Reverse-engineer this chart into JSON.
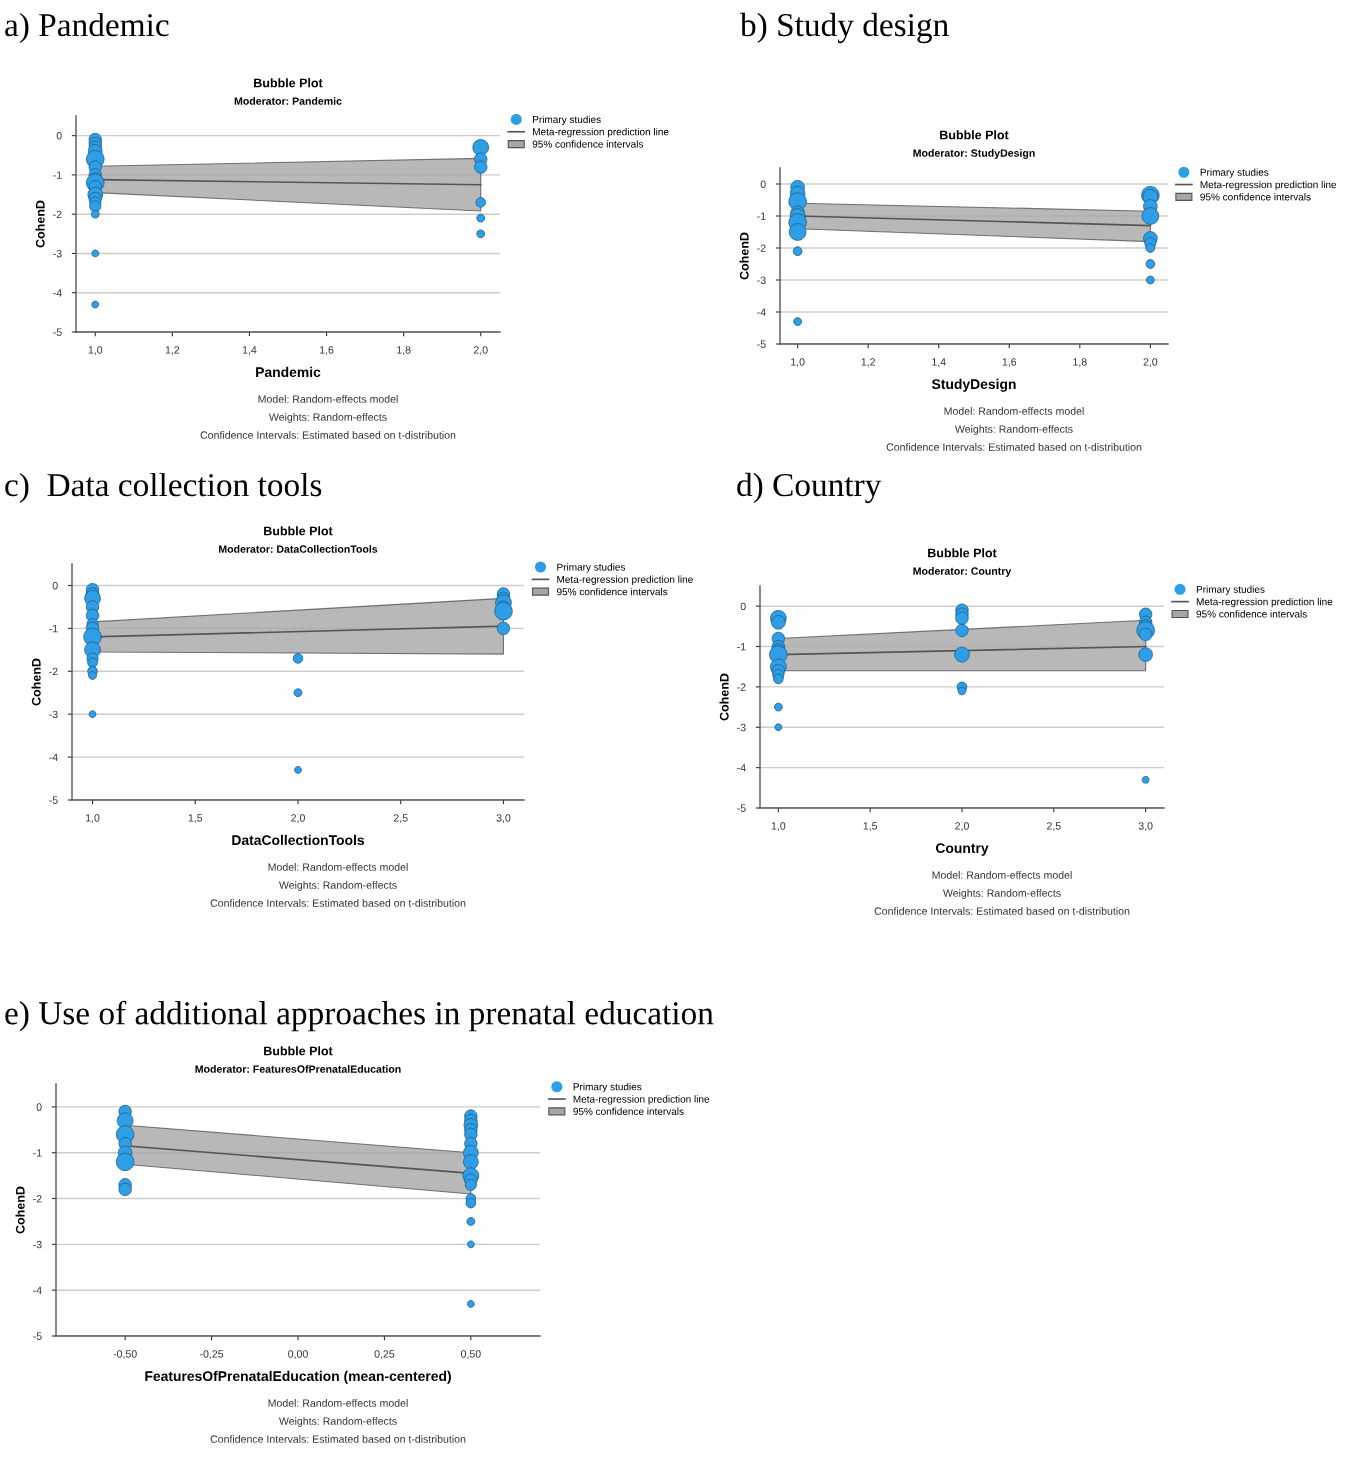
{
  "chart_data": [
    {
      "type": "bubble",
      "title": "a) Pandemic",
      "subtitle": "Bubble Plot",
      "xlabel": "Pandemic",
      "ylabel": "CohenD",
      "annotations": [
        "Moderator: Pandemic",
        "Model: Random-effects model",
        "Weights: Random-effects",
        "Confidence Intervals: Estimated based on t-distribution",
        "95% confidence intervals"
      ],
      "xlim": [
        0.95,
        2.05
      ],
      "ylim": [
        -5,
        0.5
      ],
      "xticks": [
        {
          "value": 1.0,
          "label": "1,0"
        },
        {
          "value": 1.2,
          "label": "1,2"
        },
        {
          "value": 1.4,
          "label": "1,4"
        },
        {
          "value": 1.6,
          "label": "1,6"
        },
        {
          "value": 1.8,
          "label": "1,8"
        },
        {
          "value": 2.0,
          "label": "2,0"
        }
      ],
      "yticks": [
        -5,
        -4,
        -3,
        -2,
        -1,
        0
      ],
      "grid": "y",
      "legend": "right",
      "series": [
        {
          "name": "Primary studies",
          "color": "#2e9fe6",
          "marker": "circle",
          "x": [
            1,
            1,
            1,
            1,
            1,
            1,
            1,
            1,
            1,
            1,
            1,
            1,
            1,
            1,
            1,
            1,
            1,
            2,
            2,
            2,
            2,
            2,
            2
          ],
          "values": [
            -0.1,
            -0.2,
            -0.3,
            -0.4,
            -0.6,
            -0.8,
            -1.0,
            -1.1,
            -1.2,
            -1.3,
            -1.5,
            -1.6,
            -1.7,
            -1.8,
            -2.0,
            -3.0,
            -4.3,
            -0.3,
            -0.6,
            -0.8,
            -1.7,
            -2.1,
            -2.5
          ],
          "sizes": [
            0.5,
            0.5,
            0.5,
            0.6,
            1.0,
            0.5,
            0.5,
            0.5,
            1.0,
            0.5,
            0.7,
            0.5,
            0.4,
            0.4,
            0.2,
            0.15,
            0.15,
            0.8,
            0.5,
            0.5,
            0.3,
            0.2,
            0.2
          ]
        },
        {
          "type": "line",
          "name": "Meta-regression prediction line",
          "color": "#555555",
          "x": [
            1,
            2
          ],
          "values": [
            -1.12,
            -1.25
          ],
          "lower": [
            -1.45,
            -1.92
          ],
          "upper": [
            -0.78,
            -0.58
          ]
        }
      ]
    },
    {
      "type": "bubble",
      "title": "b) Study design",
      "subtitle": "Bubble Plot",
      "xlabel": "StudyDesign",
      "ylabel": "CohenD",
      "annotations": [
        "Moderator: StudyDesign",
        "Model: Random-effects model",
        "Weights: Random-effects",
        "Confidence Intervals: Estimated based on t-distribution",
        "95% confidence intervals"
      ],
      "xlim": [
        0.95,
        2.05
      ],
      "ylim": [
        -5,
        0.5
      ],
      "xticks": [
        {
          "value": 1.0,
          "label": "1,0"
        },
        {
          "value": 1.2,
          "label": "1,2"
        },
        {
          "value": 1.4,
          "label": "1,4"
        },
        {
          "value": 1.6,
          "label": "1,6"
        },
        {
          "value": 1.8,
          "label": "1,8"
        },
        {
          "value": 2.0,
          "label": "2,0"
        }
      ],
      "yticks": [
        -5,
        -4,
        -3,
        -2,
        -1,
        0
      ],
      "grid": "y",
      "legend": "right",
      "series": [
        {
          "name": "Primary studies",
          "color": "#2e9fe6",
          "marker": "circle",
          "x": [
            1,
            1,
            1,
            1,
            1,
            1,
            1,
            1,
            1,
            2,
            2,
            2,
            2,
            2,
            2,
            2,
            2,
            2
          ],
          "values": [
            -0.1,
            -0.3,
            -0.55,
            -0.9,
            -1.0,
            -1.2,
            -1.5,
            -2.1,
            -4.3,
            -0.35,
            -0.4,
            -0.7,
            -1.0,
            -1.7,
            -1.85,
            -2.0,
            -2.5,
            -3.0
          ],
          "sizes": [
            0.6,
            0.7,
            1.0,
            0.6,
            0.7,
            1.0,
            0.9,
            0.25,
            0.2,
            1.0,
            0.7,
            0.6,
            0.9,
            0.6,
            0.4,
            0.25,
            0.25,
            0.2
          ]
        },
        {
          "type": "line",
          "name": "Meta-regression prediction line",
          "color": "#555555",
          "x": [
            1,
            2
          ],
          "values": [
            -1.0,
            -1.3
          ],
          "lower": [
            -1.4,
            -1.8
          ],
          "upper": [
            -0.6,
            -0.85
          ]
        }
      ]
    },
    {
      "type": "bubble",
      "title": "c)  Data collection tools",
      "subtitle": "Bubble Plot",
      "xlabel": "DataCollectionTools",
      "ylabel": "CohenD",
      "annotations": [
        "Moderator: DataCollectionTools",
        "Model: Random-effects model",
        "Weights: Random-effects",
        "Confidence Intervals: Estimated based on t-distribution",
        "95% confidence intervals"
      ],
      "xlim": [
        0.9,
        3.1
      ],
      "ylim": [
        -5,
        0.5
      ],
      "xticks": [
        {
          "value": 1.0,
          "label": "1,0"
        },
        {
          "value": 1.5,
          "label": "1,5"
        },
        {
          "value": 2.0,
          "label": "2,0"
        },
        {
          "value": 2.5,
          "label": "2,5"
        },
        {
          "value": 3.0,
          "label": "3,0"
        }
      ],
      "yticks": [
        -5,
        -4,
        -3,
        -2,
        -1,
        0
      ],
      "grid": "y",
      "legend": "right",
      "series": [
        {
          "name": "Primary studies",
          "color": "#2e9fe6",
          "marker": "circle",
          "x": [
            1,
            1,
            1,
            1,
            1,
            1,
            1,
            1,
            1,
            1,
            1,
            1,
            1,
            1,
            2,
            2,
            2,
            3,
            3,
            3,
            3,
            3,
            3
          ],
          "values": [
            -0.1,
            -0.2,
            -0.3,
            -0.5,
            -0.7,
            -0.9,
            -1.0,
            -1.2,
            -1.5,
            -1.7,
            -1.8,
            -2.0,
            -2.1,
            -3.0,
            -1.7,
            -2.5,
            -4.3,
            -0.2,
            -0.3,
            -0.4,
            -0.5,
            -0.6,
            -1.0
          ],
          "sizes": [
            0.5,
            0.5,
            0.8,
            0.5,
            0.5,
            0.4,
            0.5,
            1.0,
            0.8,
            0.4,
            0.3,
            0.3,
            0.2,
            0.15,
            0.3,
            0.2,
            0.15,
            0.5,
            0.5,
            0.8,
            0.5,
            1.0,
            0.5
          ]
        },
        {
          "type": "line",
          "name": "Meta-regression prediction line",
          "color": "#555555",
          "x": [
            1,
            3
          ],
          "values": [
            -1.2,
            -0.95
          ],
          "lower": [
            -1.55,
            -1.6
          ],
          "upper": [
            -0.85,
            -0.3
          ]
        }
      ]
    },
    {
      "type": "bubble",
      "title": "d) Country",
      "subtitle": "Bubble Plot",
      "xlabel": "Country",
      "ylabel": "CohenD",
      "annotations": [
        "Moderator: Country",
        "Model: Random-effects model",
        "Weights: Random-effects",
        "Confidence Intervals: Estimated based on t-distribution",
        "95% confidence intervals"
      ],
      "xlim": [
        0.9,
        3.1
      ],
      "ylim": [
        -5,
        0.5
      ],
      "xticks": [
        {
          "value": 1.0,
          "label": "1,0"
        },
        {
          "value": 1.5,
          "label": "1,5"
        },
        {
          "value": 2.0,
          "label": "2,0"
        },
        {
          "value": 2.5,
          "label": "2,5"
        },
        {
          "value": 3.0,
          "label": "3,0"
        }
      ],
      "yticks": [
        -5,
        -4,
        -3,
        -2,
        -1,
        0
      ],
      "grid": "y",
      "legend": "right",
      "series": [
        {
          "name": "Primary studies",
          "color": "#2e9fe6",
          "marker": "circle",
          "x": [
            1,
            1,
            1,
            1,
            1,
            1,
            1,
            1,
            1,
            1,
            1,
            1,
            2,
            2,
            2,
            2,
            2,
            2,
            2,
            3,
            3,
            3,
            3,
            3,
            3,
            3
          ],
          "values": [
            -0.3,
            -0.4,
            -0.8,
            -1.0,
            -1.1,
            -1.2,
            -1.5,
            -1.6,
            -1.7,
            -1.8,
            -2.5,
            -3.0,
            -0.1,
            -0.2,
            -0.3,
            -0.6,
            -1.2,
            -2.0,
            -2.1,
            -0.2,
            -0.4,
            -0.5,
            -0.6,
            -0.7,
            -1.2,
            -4.3
          ],
          "sizes": [
            0.8,
            0.6,
            0.5,
            0.5,
            0.6,
            1.0,
            0.8,
            0.5,
            0.4,
            0.3,
            0.2,
            0.15,
            0.5,
            0.5,
            0.5,
            0.5,
            0.7,
            0.3,
            0.2,
            0.5,
            0.5,
            0.6,
            1.0,
            0.5,
            0.6,
            0.15
          ]
        },
        {
          "type": "line",
          "name": "Meta-regression prediction line",
          "color": "#555555",
          "x": [
            1,
            3
          ],
          "values": [
            -1.2,
            -1.0
          ],
          "lower": [
            -1.6,
            -1.6
          ],
          "upper": [
            -0.8,
            -0.35
          ]
        }
      ]
    },
    {
      "type": "bubble",
      "title": "e) Use of additional approaches in prenatal education",
      "subtitle": "Bubble Plot",
      "xlabel": "FeaturesOfPrenatalEducation (mean-centered)",
      "ylabel": "CohenD",
      "annotations": [
        "Moderator: FeaturesOfPrenatalEducation",
        "Model: Random-effects model",
        "Weights: Random-effects",
        "Confidence Intervals: Estimated based on t-distribution",
        "95% confidence intervals"
      ],
      "xlim": [
        -0.7,
        0.7
      ],
      "ylim": [
        -5,
        0.5
      ],
      "xticks": [
        {
          "value": -0.5,
          "label": "-0,50"
        },
        {
          "value": -0.25,
          "label": "-0,25"
        },
        {
          "value": 0,
          "label": "0,00"
        },
        {
          "value": 0.25,
          "label": "0,25"
        },
        {
          "value": 0.5,
          "label": "0,50"
        }
      ],
      "yticks": [
        -5,
        -4,
        -3,
        -2,
        -1,
        0
      ],
      "grid": "y",
      "legend": "right",
      "series": [
        {
          "name": "Primary studies",
          "color": "#2e9fe6",
          "marker": "circle",
          "x": [
            -0.5,
            -0.5,
            -0.5,
            -0.5,
            -0.5,
            -0.5,
            -0.5,
            -0.5,
            0.5,
            0.5,
            0.5,
            0.5,
            0.5,
            0.5,
            0.5,
            0.5,
            0.5,
            0.5,
            0.5,
            0.5,
            0.5,
            0.5,
            0.5,
            0.5
          ],
          "values": [
            -0.1,
            -0.3,
            -0.6,
            -0.8,
            -1.0,
            -1.2,
            -1.7,
            -1.8,
            -0.2,
            -0.3,
            -0.4,
            -0.5,
            -0.6,
            -0.8,
            -1.0,
            -1.2,
            -1.5,
            -1.6,
            -1.7,
            -2.0,
            -2.1,
            -2.5,
            -3.0,
            -4.3
          ],
          "sizes": [
            0.5,
            0.8,
            1.0,
            0.5,
            0.6,
            1.0,
            0.5,
            0.5,
            0.5,
            0.5,
            0.6,
            0.5,
            0.5,
            0.5,
            0.7,
            0.7,
            0.8,
            0.5,
            0.4,
            0.3,
            0.3,
            0.2,
            0.15,
            0.15
          ]
        },
        {
          "type": "line",
          "name": "Meta-regression prediction line",
          "color": "#555555",
          "x": [
            -0.5,
            0.5
          ],
          "values": [
            -0.85,
            -1.45
          ],
          "lower": [
            -1.25,
            -1.9
          ],
          "upper": [
            -0.4,
            -1.0
          ]
        }
      ]
    }
  ]
}
